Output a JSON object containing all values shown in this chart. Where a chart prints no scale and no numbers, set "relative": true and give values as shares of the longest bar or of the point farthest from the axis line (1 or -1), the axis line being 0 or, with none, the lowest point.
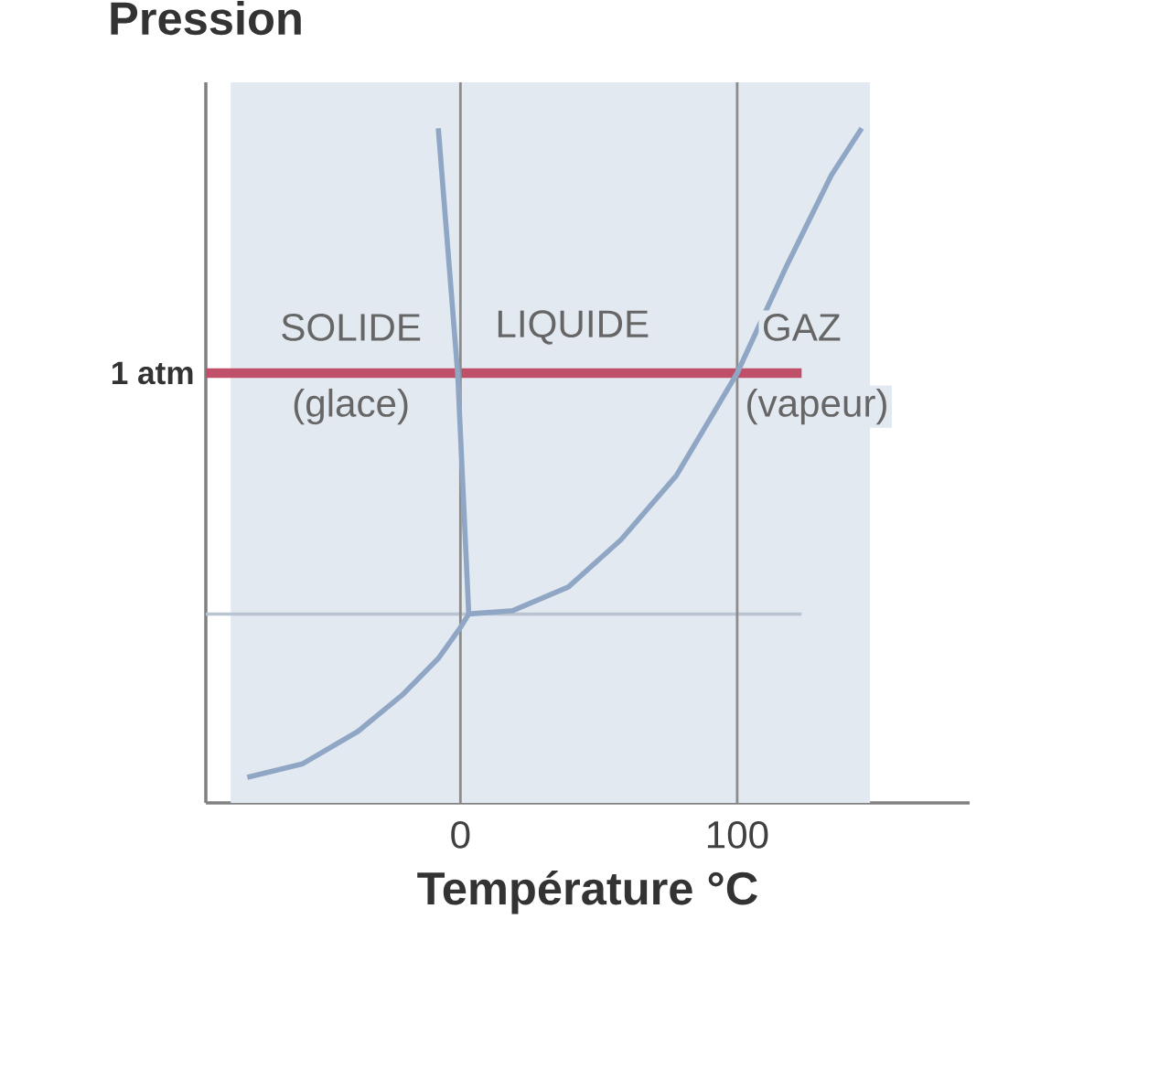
{
  "chart_data": {
    "type": "line",
    "relative": true,
    "xlabel": "Température °C",
    "ylabel": "Pression",
    "xlim": [
      -92,
      184
    ],
    "xticks": [
      0,
      100
    ],
    "series": [
      {
        "color": "#8fa6c4",
        "x": [
          -77,
          -57,
          -37,
          -21,
          -8,
          0,
          3
        ],
        "values": [
          0.038,
          0.058,
          0.106,
          0.16,
          0.214,
          0.26,
          0.28
        ]
      },
      {
        "color": "#8fa6c4",
        "x": [
          3,
          -1,
          -8
        ],
        "values": [
          0.28,
          0.637,
          1.0
        ]
      },
      {
        "color": "#8fa6c4",
        "x": [
          3,
          19,
          39,
          58,
          78,
          100,
          118,
          134,
          145
        ],
        "values": [
          0.28,
          0.285,
          0.32,
          0.39,
          0.485,
          0.637,
          0.797,
          0.93,
          1.0
        ]
      }
    ],
    "ref_lines": [
      {
        "axis": "y",
        "value": 0.637,
        "label": "1 atm",
        "color": "#c0506a"
      },
      {
        "axis": "y",
        "value": 0.28,
        "color": "#b8c4d2"
      },
      {
        "axis": "x",
        "value": 0,
        "color": "#8c8c8c"
      },
      {
        "axis": "x",
        "value": 100,
        "color": "#8c8c8c"
      }
    ],
    "bands": [
      {
        "axis": "x",
        "from": -83,
        "to": 148,
        "color": "#e3e9f1"
      }
    ],
    "annotations": [
      "SOLIDE",
      "(glace)",
      "LIQUIDE",
      "GAZ",
      "(vapeur)"
    ]
  }
}
